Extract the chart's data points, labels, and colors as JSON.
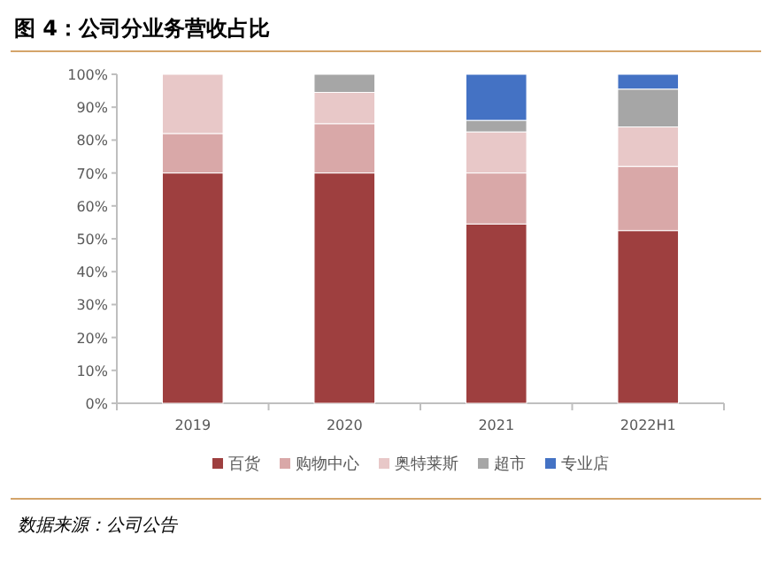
{
  "chart_data": {
    "type": "bar",
    "stacked": true,
    "title": "图 4：公司分业务营收占比",
    "categories": [
      "2019",
      "2020",
      "2021",
      "2022H1"
    ],
    "series": [
      {
        "name": "百货",
        "color": "#9e3f3f",
        "values": [
          70,
          70,
          54.5,
          52.5
        ]
      },
      {
        "name": "购物中心",
        "color": "#d9a8a8",
        "values": [
          12,
          15,
          15.5,
          19.5
        ]
      },
      {
        "name": "奥特莱斯",
        "color": "#e8c8c8",
        "values": [
          18,
          9.5,
          12.5,
          12
        ]
      },
      {
        "name": "超市",
        "color": "#a6a6a6",
        "values": [
          null,
          5.5,
          3.5,
          11.5
        ]
      },
      {
        "name": "专业店",
        "color": "#4472c4",
        "values": [
          null,
          null,
          14,
          4.5
        ]
      }
    ],
    "ylim": [
      0,
      100
    ],
    "yticks": [
      {
        "value": 0,
        "label": "0%"
      },
      {
        "value": 10,
        "label": "10%"
      },
      {
        "value": 20,
        "label": "20%"
      },
      {
        "value": 30,
        "label": "30%"
      },
      {
        "value": 40,
        "label": "40%"
      },
      {
        "value": 50,
        "label": "50%"
      },
      {
        "value": 60,
        "label": "60%"
      },
      {
        "value": 70,
        "label": "70%"
      },
      {
        "value": 80,
        "label": "80%"
      },
      {
        "value": 90,
        "label": "90%"
      },
      {
        "value": 100,
        "label": "100%"
      }
    ],
    "legend": "bottom",
    "annotations": [
      "数据来源：公司公告"
    ]
  }
}
